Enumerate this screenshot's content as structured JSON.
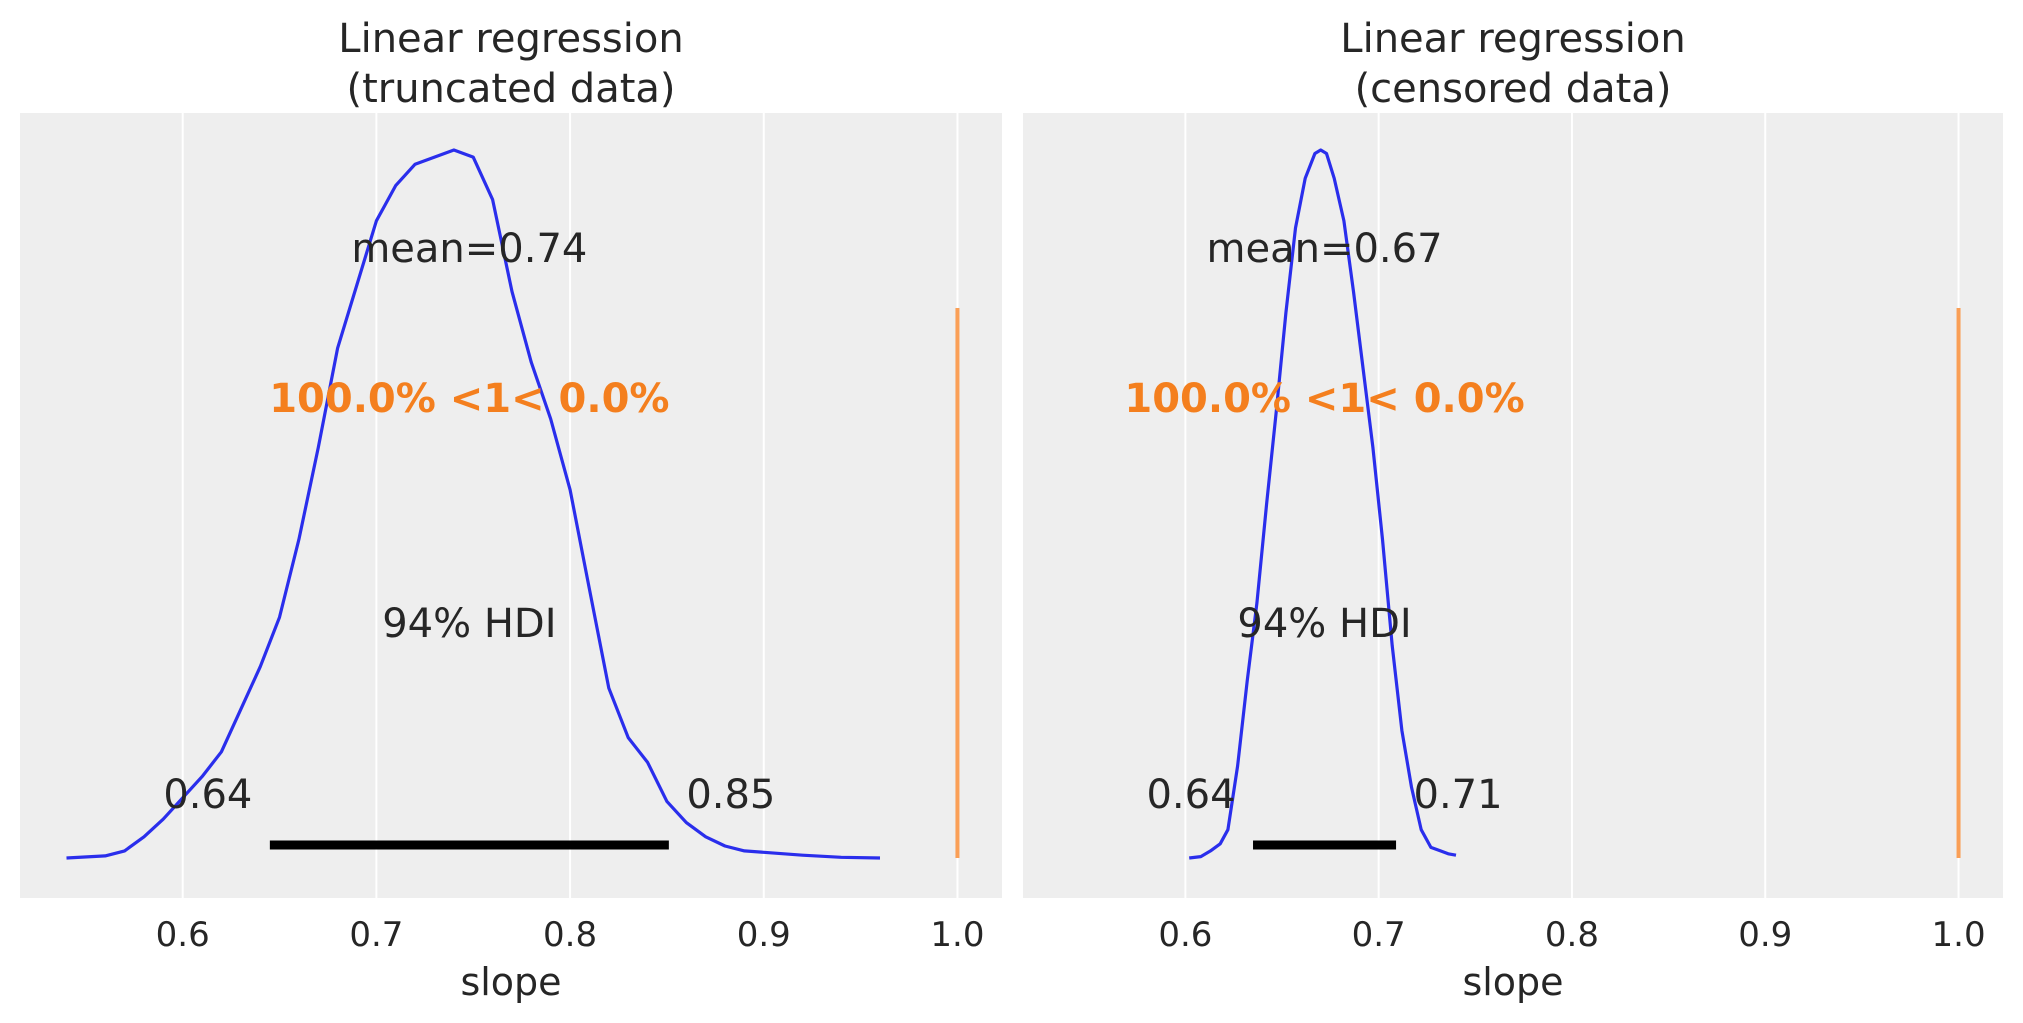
{
  "chart_data": [
    {
      "type": "area",
      "title_line1": "Linear regression",
      "title_line2": "(truncated data)",
      "xlabel": "slope",
      "xlim": [
        0.516,
        1.023
      ],
      "xticks": [
        "0.6",
        "0.7",
        "0.8",
        "0.9",
        "1.0"
      ],
      "grid": true,
      "density": {
        "x": [
          0.54,
          0.56,
          0.57,
          0.58,
          0.59,
          0.6,
          0.61,
          0.62,
          0.63,
          0.64,
          0.65,
          0.66,
          0.67,
          0.68,
          0.69,
          0.7,
          0.71,
          0.72,
          0.73,
          0.74,
          0.75,
          0.76,
          0.77,
          0.78,
          0.79,
          0.8,
          0.81,
          0.82,
          0.83,
          0.84,
          0.85,
          0.86,
          0.87,
          0.88,
          0.89,
          0.9,
          0.92,
          0.94,
          0.96
        ],
        "y": [
          0.0,
          0.003,
          0.01,
          0.03,
          0.055,
          0.085,
          0.115,
          0.15,
          0.21,
          0.27,
          0.34,
          0.45,
          0.58,
          0.72,
          0.81,
          0.9,
          0.95,
          0.98,
          0.99,
          1.0,
          0.99,
          0.93,
          0.8,
          0.7,
          0.62,
          0.52,
          0.38,
          0.24,
          0.17,
          0.135,
          0.08,
          0.05,
          0.03,
          0.017,
          0.01,
          0.008,
          0.004,
          0.001,
          0.0
        ]
      },
      "mean_label": "mean=0.74",
      "reference_label": "100.0% <1< 0.0%",
      "reference_value": 1.0,
      "hdi_label": "94% HDI",
      "hdi": [
        0.645,
        0.851
      ],
      "hdi_low_label": "0.64",
      "hdi_high_label": "0.85"
    },
    {
      "type": "area",
      "title_line1": "Linear regression",
      "title_line2": "(censored data)",
      "xlabel": "slope",
      "xlim": [
        0.516,
        1.023
      ],
      "xticks": [
        "0.6",
        "0.7",
        "0.8",
        "0.9",
        "1.0"
      ],
      "grid": true,
      "density": {
        "x": [
          0.602,
          0.608,
          0.613,
          0.618,
          0.622,
          0.627,
          0.632,
          0.637,
          0.642,
          0.647,
          0.652,
          0.657,
          0.662,
          0.667,
          0.67,
          0.673,
          0.677,
          0.682,
          0.687,
          0.692,
          0.697,
          0.702,
          0.707,
          0.712,
          0.717,
          0.722,
          0.727,
          0.732,
          0.736,
          0.74
        ],
        "y": [
          0.0,
          0.002,
          0.01,
          0.02,
          0.04,
          0.13,
          0.25,
          0.36,
          0.5,
          0.63,
          0.77,
          0.89,
          0.96,
          0.995,
          1.0,
          0.995,
          0.96,
          0.9,
          0.8,
          0.69,
          0.58,
          0.45,
          0.3,
          0.18,
          0.1,
          0.04,
          0.015,
          0.01,
          0.006,
          0.004
        ]
      },
      "mean_label": "mean=0.67",
      "reference_label": "100.0% <1< 0.0%",
      "reference_value": 1.0,
      "hdi_label": "94% HDI",
      "hdi": [
        0.635,
        0.709
      ],
      "hdi_low_label": "0.64",
      "hdi_high_label": "0.71"
    }
  ],
  "colors": {
    "panel_bg": "#eeeeee",
    "grid": "#ffffff",
    "kde": "#2a2eec",
    "reference": "#fa9f56",
    "reference_text": "#f47f1e",
    "hdi": "#000000",
    "text": "#262626"
  }
}
